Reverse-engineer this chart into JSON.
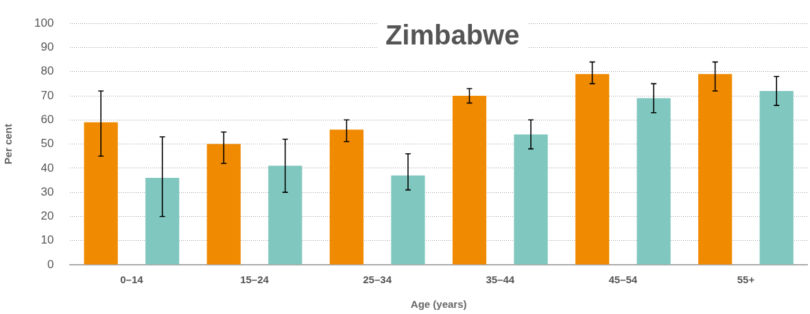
{
  "chart_data": {
    "type": "bar",
    "title": "Zimbabwe",
    "xlabel": "Age (years)",
    "ylabel": "Per cent",
    "categories": [
      "0–14",
      "15–24",
      "25–34",
      "35–44",
      "45–54",
      "55+"
    ],
    "series": [
      {
        "color": "#f08a00",
        "values": [
          59,
          50,
          56,
          70,
          79,
          79
        ],
        "errors": [
          [
            45,
            72
          ],
          [
            42,
            55
          ],
          [
            51,
            60
          ],
          [
            67,
            73
          ],
          [
            75,
            84
          ],
          [
            72,
            84
          ]
        ]
      },
      {
        "color": "#80c7bf",
        "values": [
          36,
          41,
          37,
          54,
          69,
          72
        ],
        "errors": [
          [
            20,
            53
          ],
          [
            30,
            52
          ],
          [
            31,
            46
          ],
          [
            48,
            60
          ],
          [
            63,
            75
          ],
          [
            66,
            78
          ]
        ]
      }
    ],
    "ylim": [
      0,
      100
    ],
    "yticks": [
      0,
      10,
      20,
      30,
      40,
      50,
      60,
      70,
      80,
      90,
      100
    ],
    "grid": "y",
    "legend": false
  }
}
